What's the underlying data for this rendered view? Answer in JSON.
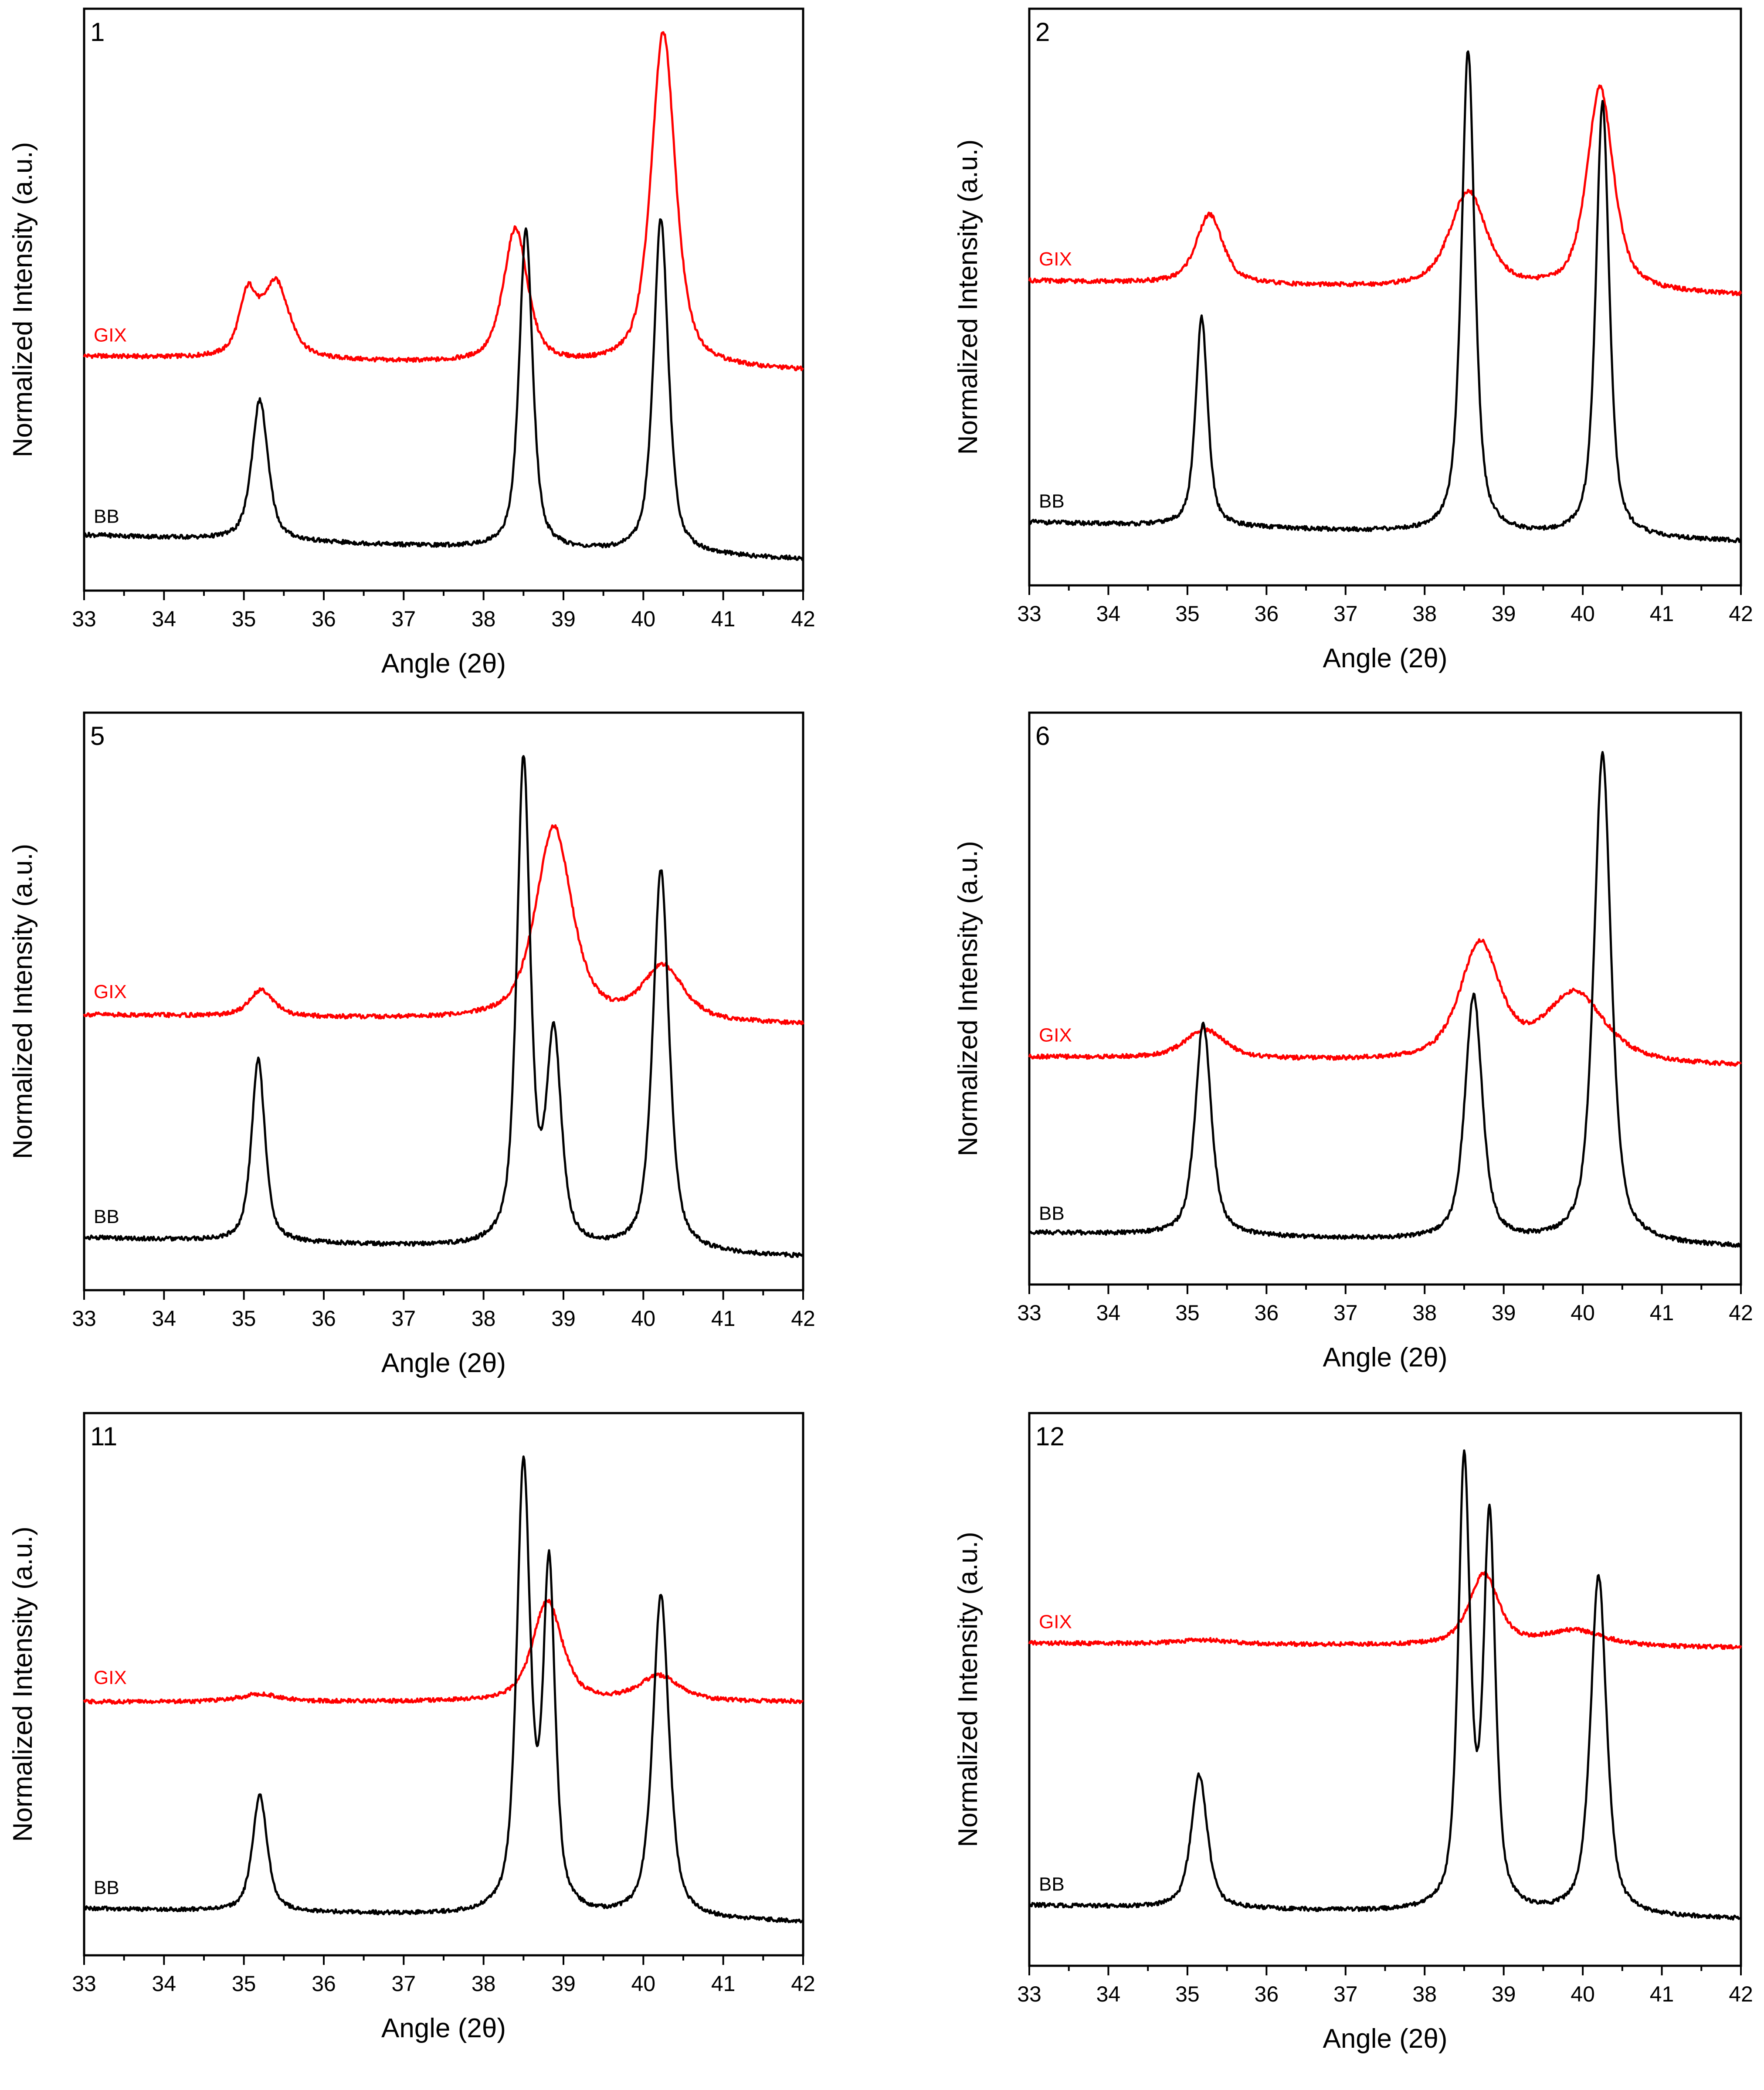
{
  "colors": {
    "gix": "#ff0000",
    "bb": "#000000",
    "axis": "#000000"
  },
  "chart_data": [
    {
      "type": "line",
      "panel": "1",
      "xlabel": "Angle (2θ)",
      "ylabel": "Normalized Intensity (a.u.)",
      "xlim": [
        33,
        42
      ],
      "ylim": [
        0,
        1
      ],
      "xticks": [
        33,
        34,
        35,
        36,
        37,
        38,
        39,
        40,
        41,
        42
      ],
      "series": [
        {
          "name": "GIX",
          "baseline": 0.395,
          "slope": -0.003,
          "peaks": [
            {
              "center": 35.05,
              "height": 0.11,
              "width": 0.13
            },
            {
              "center": 35.4,
              "height": 0.14,
              "width": 0.2
            },
            {
              "center": 38.4,
              "height": 0.25,
              "width": 0.18
            },
            {
              "center": 40.25,
              "height": 0.62,
              "width": 0.18
            }
          ]
        },
        {
          "name": "BB",
          "baseline": 0.065,
          "slope": -0.005,
          "peaks": [
            {
              "center": 35.2,
              "height": 0.26,
              "width": 0.12
            },
            {
              "center": 38.53,
              "height": 0.59,
              "width": 0.1
            },
            {
              "center": 40.22,
              "height": 0.62,
              "width": 0.11
            }
          ]
        }
      ]
    },
    {
      "type": "line",
      "panel": "2",
      "xlabel": "Angle (2θ)",
      "ylabel": "Normalized Intensity (a.u.)",
      "xlim": [
        33,
        42
      ],
      "ylim": [
        0,
        1
      ],
      "xticks": [
        33,
        34,
        35,
        36,
        37,
        38,
        39,
        40,
        41,
        42
      ],
      "series": [
        {
          "name": "GIX",
          "baseline": 0.53,
          "slope": -0.003,
          "peaks": [
            {
              "center": 35.28,
              "height": 0.13,
              "width": 0.2
            },
            {
              "center": 38.55,
              "height": 0.18,
              "width": 0.28
            },
            {
              "center": 40.22,
              "height": 0.38,
              "width": 0.2
            }
          ]
        },
        {
          "name": "BB",
          "baseline": 0.08,
          "slope": -0.004,
          "peaks": [
            {
              "center": 35.18,
              "height": 0.39,
              "width": 0.09
            },
            {
              "center": 38.55,
              "height": 0.9,
              "width": 0.1
            },
            {
              "center": 40.25,
              "height": 0.81,
              "width": 0.1
            }
          ]
        }
      ]
    },
    {
      "type": "line",
      "panel": "5",
      "xlabel": "Angle (2θ)",
      "ylabel": "Normalized Intensity (a.u.)",
      "xlim": [
        33,
        42
      ],
      "ylim": [
        0,
        1
      ],
      "xticks": [
        33,
        34,
        35,
        36,
        37,
        38,
        39,
        40,
        41,
        42
      ],
      "series": [
        {
          "name": "GIX",
          "baseline": 0.475,
          "slope": -0.002,
          "peaks": [
            {
              "center": 35.22,
              "height": 0.05,
              "width": 0.18
            },
            {
              "center": 38.88,
              "height": 0.36,
              "width": 0.27
            },
            {
              "center": 40.25,
              "height": 0.1,
              "width": 0.3
            }
          ]
        },
        {
          "name": "BB",
          "baseline": 0.06,
          "slope": -0.004,
          "peaks": [
            {
              "center": 35.18,
              "height": 0.34,
              "width": 0.1
            },
            {
              "center": 38.5,
              "height": 0.9,
              "width": 0.1
            },
            {
              "center": 38.88,
              "height": 0.38,
              "width": 0.11
            },
            {
              "center": 40.22,
              "height": 0.71,
              "width": 0.12
            }
          ]
        }
      ]
    },
    {
      "type": "line",
      "panel": "6",
      "xlabel": "Angle (2θ)",
      "ylabel": "Normalized Intensity (a.u.)",
      "xlim": [
        33,
        42
      ],
      "ylim": [
        0,
        1
      ],
      "xticks": [
        33,
        34,
        35,
        36,
        37,
        38,
        39,
        40,
        41,
        42
      ],
      "series": [
        {
          "name": "GIX",
          "baseline": 0.39,
          "slope": -0.002,
          "peaks": [
            {
              "center": 35.22,
              "height": 0.055,
              "width": 0.3
            },
            {
              "center": 38.7,
              "height": 0.22,
              "width": 0.3
            },
            {
              "center": 39.9,
              "height": 0.13,
              "width": 0.45
            }
          ]
        },
        {
          "name": "BB",
          "baseline": 0.06,
          "slope": -0.003,
          "peaks": [
            {
              "center": 35.2,
              "height": 0.4,
              "width": 0.12
            },
            {
              "center": 38.62,
              "height": 0.46,
              "width": 0.13
            },
            {
              "center": 40.25,
              "height": 0.92,
              "width": 0.13
            }
          ]
        }
      ]
    },
    {
      "type": "line",
      "panel": "11",
      "xlabel": "Angle (2θ)",
      "ylabel": "Normalized Intensity (a.u.)",
      "xlim": [
        33,
        42
      ],
      "ylim": [
        0,
        1
      ],
      "xticks": [
        33,
        34,
        35,
        36,
        37,
        38,
        39,
        40,
        41,
        42
      ],
      "series": [
        {
          "name": "GIX",
          "baseline": 0.465,
          "slope": 0,
          "peaks": [
            {
              "center": 35.2,
              "height": 0.015,
              "width": 0.3
            },
            {
              "center": 38.8,
              "height": 0.2,
              "width": 0.22
            },
            {
              "center": 40.2,
              "height": 0.05,
              "width": 0.3
            }
          ]
        },
        {
          "name": "BB",
          "baseline": 0.055,
          "slope": -0.003,
          "peaks": [
            {
              "center": 35.2,
              "height": 0.23,
              "width": 0.11
            },
            {
              "center": 38.5,
              "height": 0.88,
              "width": 0.1
            },
            {
              "center": 38.82,
              "height": 0.67,
              "width": 0.09
            },
            {
              "center": 40.22,
              "height": 0.64,
              "width": 0.12
            }
          ]
        }
      ]
    },
    {
      "type": "line",
      "panel": "12",
      "xlabel": "Angle (2θ)",
      "ylabel": "Normalized Intensity (a.u.)",
      "xlim": [
        33,
        42
      ],
      "ylim": [
        0,
        1
      ],
      "xticks": [
        33,
        34,
        35,
        36,
        37,
        38,
        39,
        40,
        41,
        42
      ],
      "series": [
        {
          "name": "GIX",
          "baseline": 0.59,
          "slope": -0.001,
          "peaks": [
            {
              "center": 35.2,
              "height": 0.008,
              "width": 0.4
            },
            {
              "center": 38.75,
              "height": 0.14,
              "width": 0.22
            },
            {
              "center": 39.9,
              "height": 0.03,
              "width": 0.45
            }
          ]
        },
        {
          "name": "BB",
          "baseline": 0.08,
          "slope": -0.003,
          "peaks": [
            {
              "center": 35.15,
              "height": 0.26,
              "width": 0.12
            },
            {
              "center": 38.5,
              "height": 0.86,
              "width": 0.09
            },
            {
              "center": 38.82,
              "height": 0.75,
              "width": 0.09
            },
            {
              "center": 40.2,
              "height": 0.66,
              "width": 0.12
            }
          ]
        }
      ]
    }
  ]
}
